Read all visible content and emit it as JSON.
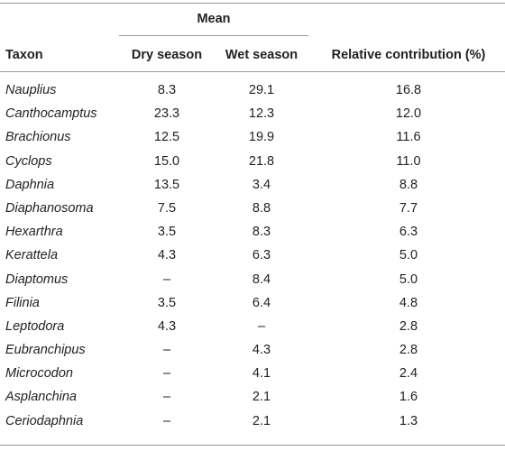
{
  "header": {
    "group": "Mean",
    "taxon": "Taxon",
    "dry": "Dry season",
    "wet": "Wet season",
    "relative": "Relative contribution (%)"
  },
  "rows": [
    {
      "taxon": "Nauplius",
      "dry": "8.3",
      "wet": "29.1",
      "rel": "16.8"
    },
    {
      "taxon": "Canthocamptus",
      "dry": "23.3",
      "wet": "12.3",
      "rel": "12.0"
    },
    {
      "taxon": "Brachionus",
      "dry": "12.5",
      "wet": "19.9",
      "rel": "11.6"
    },
    {
      "taxon": "Cyclops",
      "dry": "15.0",
      "wet": "21.8",
      "rel": "11.0"
    },
    {
      "taxon": "Daphnia",
      "dry": "13.5",
      "wet": "3.4",
      "rel": "8.8"
    },
    {
      "taxon": "Diaphanosoma",
      "dry": "7.5",
      "wet": "8.8",
      "rel": "7.7"
    },
    {
      "taxon": "Hexarthra",
      "dry": "3.5",
      "wet": "8.3",
      "rel": "6.3"
    },
    {
      "taxon": "Kerattela",
      "dry": "4.3",
      "wet": "6.3",
      "rel": "5.0"
    },
    {
      "taxon": "Diaptomus",
      "dry": "–",
      "wet": "8.4",
      "rel": "5.0"
    },
    {
      "taxon": "Filinia",
      "dry": "3.5",
      "wet": "6.4",
      "rel": "4.8"
    },
    {
      "taxon": "Leptodora",
      "dry": "4.3",
      "wet": "–",
      "rel": "2.8"
    },
    {
      "taxon": "Eubranchipus",
      "dry": "–",
      "wet": "4.3",
      "rel": "2.8"
    },
    {
      "taxon": "Microcodon",
      "dry": "–",
      "wet": "4.1",
      "rel": "2.4"
    },
    {
      "taxon": "Asplanchina",
      "dry": "–",
      "wet": "2.1",
      "rel": "1.6"
    },
    {
      "taxon": "Ceriodaphnia",
      "dry": "–",
      "wet": "2.1",
      "rel": "1.3"
    }
  ]
}
